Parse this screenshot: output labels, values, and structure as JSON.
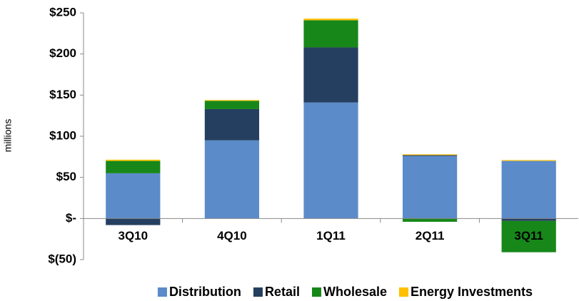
{
  "chart_data": {
    "type": "stacked_bar",
    "y_label": "millions",
    "categories": [
      "3Q10",
      "4Q10",
      "1Q11",
      "2Q11",
      "3Q11"
    ],
    "series": [
      {
        "name": "Distribution",
        "color": "#5b8bc9",
        "values": [
          55,
          95,
          141,
          76,
          70
        ]
      },
      {
        "name": "Retail",
        "color": "#243f60",
        "values": [
          -8,
          38,
          67,
          1,
          -3
        ]
      },
      {
        "name": "Wholesale",
        "color": "#17871a",
        "values": [
          15,
          10,
          33,
          -4,
          -38
        ]
      },
      {
        "name": "Energy Investments",
        "color": "#ffc000",
        "values": [
          1.5,
          1,
          2,
          1,
          1
        ]
      }
    ],
    "ylim": [
      -50,
      250
    ],
    "yticks": [
      {
        "value": 250,
        "label": "$250"
      },
      {
        "value": 200,
        "label": "$200"
      },
      {
        "value": 150,
        "label": "$150"
      },
      {
        "value": 100,
        "label": "$100"
      },
      {
        "value": 50,
        "label": "$50"
      },
      {
        "value": 0,
        "label": "$-"
      },
      {
        "value": -50,
        "label": "$(50)"
      }
    ],
    "legend": "bottom"
  }
}
